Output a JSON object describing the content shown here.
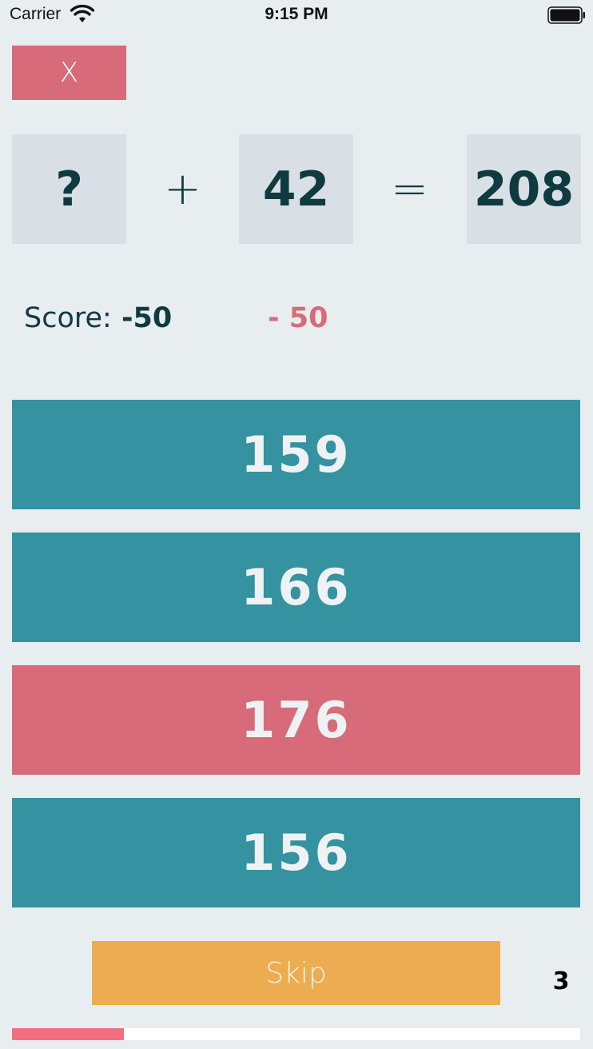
{
  "status_bar": {
    "carrier": "Carrier",
    "time": "9:15 PM",
    "wifi_icon": "wifi-icon",
    "battery_icon": "battery-icon"
  },
  "close_button": {
    "label": "X"
  },
  "equation": {
    "operand1": "?",
    "operator": "+",
    "operand2": "42",
    "equals": "=",
    "result": "208"
  },
  "score": {
    "label": "Score:",
    "value": "-50",
    "delta": "- 50"
  },
  "answers": [
    {
      "value": "159",
      "state": "normal"
    },
    {
      "value": "166",
      "state": "normal"
    },
    {
      "value": "176",
      "state": "wrong"
    },
    {
      "value": "156",
      "state": "normal"
    }
  ],
  "skip_button": {
    "label": "Skip"
  },
  "counter": "3",
  "progress": {
    "fraction": 0.197
  },
  "colors": {
    "background": "#e8edf0",
    "answer": "#3592a0",
    "wrong": "#d86b79",
    "skip": "#ecad52",
    "progress": "#f26f80",
    "text_dark": "#0f3a40"
  }
}
